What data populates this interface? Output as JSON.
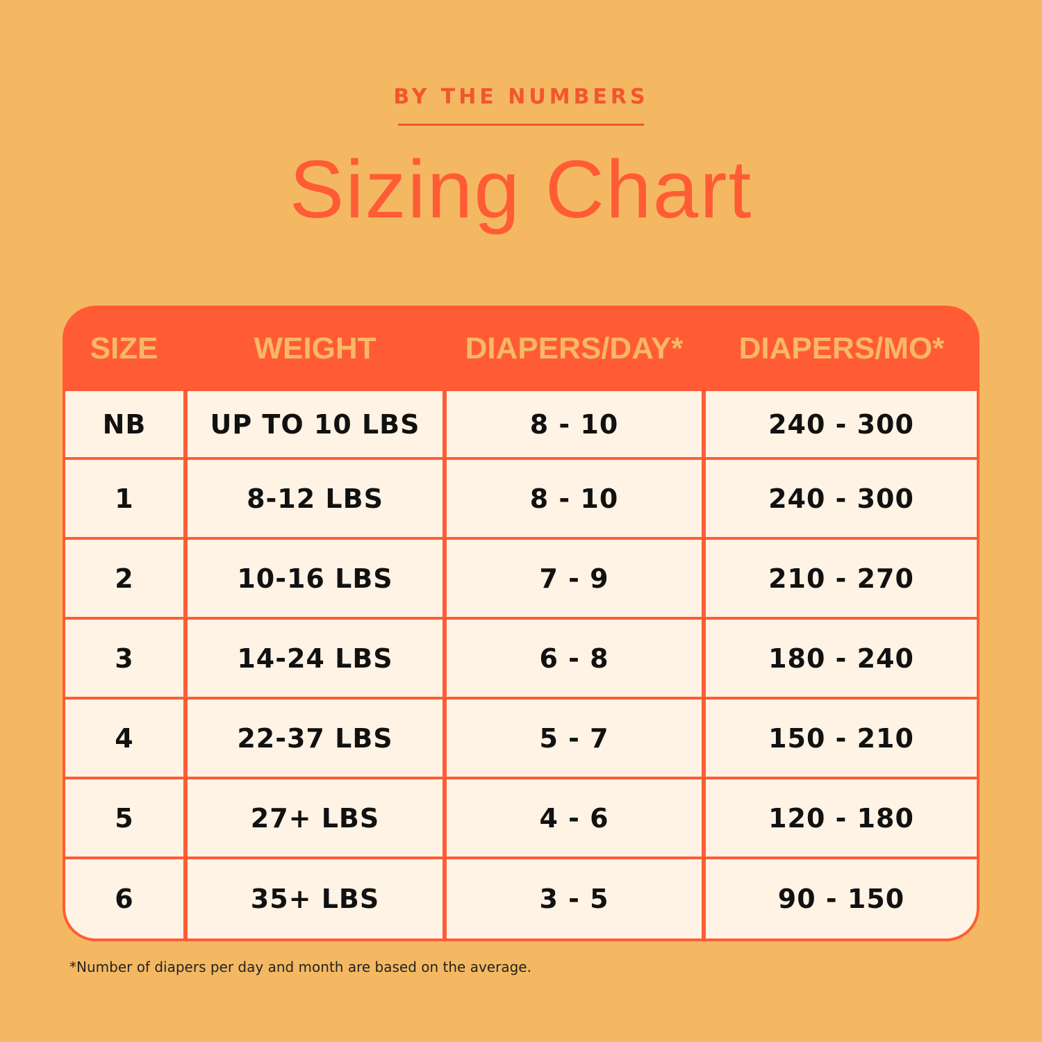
{
  "eyebrow": "BY THE NUMBERS",
  "title": "Sizing Chart",
  "colors": {
    "background": "#F4B862",
    "accent": "#FF5C35",
    "cell": "#FEF3E4",
    "header_text": "#F8B866"
  },
  "table": {
    "headers": [
      "SIZE",
      "WEIGHT",
      "DIAPERS/DAY*",
      "DIAPERS/MO*"
    ],
    "rows": [
      [
        "NB",
        "UP TO 10 LBS",
        "8 - 10",
        "240 - 300"
      ],
      [
        "1",
        "8-12 LBS",
        "8 - 10",
        "240 - 300"
      ],
      [
        "2",
        "10-16 LBS",
        "7 - 9",
        "210 - 270"
      ],
      [
        "3",
        "14-24 LBS",
        "6 - 8",
        "180 - 240"
      ],
      [
        "4",
        "22-37 LBS",
        "5 - 7",
        "150 - 210"
      ],
      [
        "5",
        "27+ LBS",
        "4 - 6",
        "120 - 180"
      ],
      [
        "6",
        "35+ LBS",
        "3 - 5",
        "90 - 150"
      ]
    ]
  },
  "footnote": "*Number of diapers per day and month are based on the average."
}
